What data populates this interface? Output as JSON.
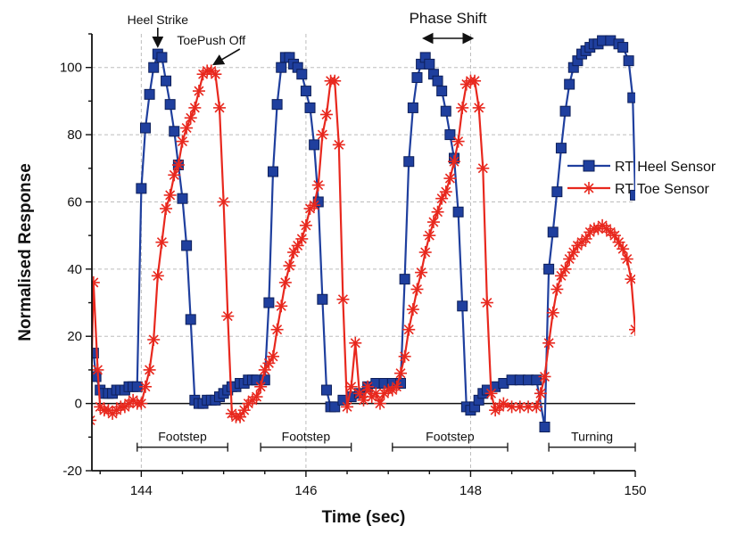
{
  "chart_data": {
    "type": "line",
    "xlabel": "Time (sec)",
    "ylabel": "Normalised Response",
    "xlim": [
      143.4,
      150
    ],
    "ylim": [
      -20,
      110
    ],
    "xticks": [
      144,
      146,
      148,
      150
    ],
    "yticks": [
      -20,
      0,
      20,
      40,
      60,
      80,
      100
    ],
    "grid": true,
    "legend_position": "right",
    "series": [
      {
        "name": "RT Heel Sensor",
        "color": "#1f3f9e",
        "marker": "square",
        "points": [
          [
            143.42,
            15
          ],
          [
            143.45,
            8
          ],
          [
            143.5,
            4
          ],
          [
            143.55,
            3
          ],
          [
            143.6,
            3
          ],
          [
            143.65,
            3
          ],
          [
            143.7,
            4
          ],
          [
            143.75,
            4
          ],
          [
            143.8,
            4
          ],
          [
            143.85,
            5
          ],
          [
            143.9,
            5
          ],
          [
            143.95,
            5
          ],
          [
            144.0,
            64
          ],
          [
            144.05,
            82
          ],
          [
            144.1,
            92
          ],
          [
            144.15,
            100
          ],
          [
            144.2,
            104
          ],
          [
            144.25,
            103
          ],
          [
            144.3,
            96
          ],
          [
            144.35,
            89
          ],
          [
            144.4,
            81
          ],
          [
            144.45,
            71
          ],
          [
            144.5,
            61
          ],
          [
            144.55,
            47
          ],
          [
            144.6,
            25
          ],
          [
            144.65,
            1
          ],
          [
            144.7,
            0
          ],
          [
            144.75,
            0
          ],
          [
            144.8,
            1
          ],
          [
            144.85,
            1
          ],
          [
            144.9,
            1
          ],
          [
            144.95,
            2
          ],
          [
            145.0,
            3
          ],
          [
            145.05,
            4
          ],
          [
            145.1,
            5
          ],
          [
            145.15,
            5
          ],
          [
            145.2,
            6
          ],
          [
            145.25,
            6
          ],
          [
            145.3,
            7
          ],
          [
            145.35,
            7
          ],
          [
            145.4,
            7
          ],
          [
            145.5,
            7
          ],
          [
            145.55,
            30
          ],
          [
            145.6,
            69
          ],
          [
            145.65,
            89
          ],
          [
            145.7,
            100
          ],
          [
            145.75,
            103
          ],
          [
            145.8,
            103
          ],
          [
            145.85,
            101
          ],
          [
            145.9,
            100
          ],
          [
            145.95,
            98
          ],
          [
            146.0,
            93
          ],
          [
            146.05,
            88
          ],
          [
            146.1,
            77
          ],
          [
            146.15,
            60
          ],
          [
            146.2,
            31
          ],
          [
            146.25,
            4
          ],
          [
            146.3,
            -1
          ],
          [
            146.35,
            -1
          ],
          [
            146.45,
            1
          ],
          [
            146.55,
            2
          ],
          [
            146.65,
            3
          ],
          [
            146.75,
            5
          ],
          [
            146.85,
            6
          ],
          [
            146.95,
            6
          ],
          [
            147.05,
            6
          ],
          [
            147.15,
            6
          ],
          [
            147.2,
            37
          ],
          [
            147.25,
            72
          ],
          [
            147.3,
            88
          ],
          [
            147.35,
            97
          ],
          [
            147.4,
            101
          ],
          [
            147.45,
            103
          ],
          [
            147.5,
            101
          ],
          [
            147.55,
            98
          ],
          [
            147.6,
            96
          ],
          [
            147.65,
            93
          ],
          [
            147.7,
            87
          ],
          [
            147.75,
            80
          ],
          [
            147.8,
            73
          ],
          [
            147.85,
            57
          ],
          [
            147.9,
            29
          ],
          [
            147.95,
            -1
          ],
          [
            148.0,
            -2
          ],
          [
            148.05,
            -1
          ],
          [
            148.1,
            1
          ],
          [
            148.15,
            3
          ],
          [
            148.2,
            4
          ],
          [
            148.3,
            5
          ],
          [
            148.4,
            6
          ],
          [
            148.5,
            7
          ],
          [
            148.6,
            7
          ],
          [
            148.7,
            7
          ],
          [
            148.8,
            7
          ],
          [
            148.9,
            -7
          ],
          [
            148.95,
            40
          ],
          [
            149.0,
            51
          ],
          [
            149.05,
            63
          ],
          [
            149.1,
            76
          ],
          [
            149.15,
            87
          ],
          [
            149.2,
            95
          ],
          [
            149.25,
            100
          ],
          [
            149.3,
            102
          ],
          [
            149.35,
            104
          ],
          [
            149.4,
            105
          ],
          [
            149.45,
            106
          ],
          [
            149.5,
            107
          ],
          [
            149.55,
            107
          ],
          [
            149.6,
            108
          ],
          [
            149.7,
            108
          ],
          [
            149.8,
            107
          ],
          [
            149.85,
            106
          ],
          [
            149.92,
            102
          ],
          [
            149.97,
            91
          ],
          [
            150.0,
            62
          ]
        ]
      },
      {
        "name": "RT Toe Sensor",
        "color": "#e8281e",
        "marker": "asterisk",
        "points": [
          [
            143.38,
            -5
          ],
          [
            143.42,
            36
          ],
          [
            143.47,
            10
          ],
          [
            143.5,
            -1
          ],
          [
            143.55,
            -2
          ],
          [
            143.6,
            -2
          ],
          [
            143.65,
            -3
          ],
          [
            143.7,
            -2
          ],
          [
            143.75,
            -1
          ],
          [
            143.8,
            -1
          ],
          [
            143.85,
            0
          ],
          [
            143.9,
            1
          ],
          [
            143.95,
            0
          ],
          [
            144.0,
            0
          ],
          [
            144.05,
            5
          ],
          [
            144.1,
            10
          ],
          [
            144.15,
            19
          ],
          [
            144.2,
            38
          ],
          [
            144.25,
            48
          ],
          [
            144.3,
            58
          ],
          [
            144.35,
            62
          ],
          [
            144.4,
            68
          ],
          [
            144.45,
            71
          ],
          [
            144.5,
            78
          ],
          [
            144.55,
            82
          ],
          [
            144.6,
            85
          ],
          [
            144.65,
            88
          ],
          [
            144.7,
            93
          ],
          [
            144.75,
            98
          ],
          [
            144.8,
            99
          ],
          [
            144.85,
            99
          ],
          [
            144.9,
            98
          ],
          [
            144.95,
            88
          ],
          [
            145.0,
            60
          ],
          [
            145.05,
            26
          ],
          [
            145.1,
            -3
          ],
          [
            145.15,
            -4
          ],
          [
            145.2,
            -4
          ],
          [
            145.25,
            -2
          ],
          [
            145.3,
            0
          ],
          [
            145.35,
            1
          ],
          [
            145.4,
            2
          ],
          [
            145.45,
            5
          ],
          [
            145.5,
            10
          ],
          [
            145.55,
            12
          ],
          [
            145.6,
            14
          ],
          [
            145.65,
            22
          ],
          [
            145.7,
            29
          ],
          [
            145.75,
            36
          ],
          [
            145.8,
            41
          ],
          [
            145.85,
            45
          ],
          [
            145.9,
            47
          ],
          [
            145.95,
            49
          ],
          [
            146.0,
            53
          ],
          [
            146.05,
            58
          ],
          [
            146.1,
            59
          ],
          [
            146.15,
            65
          ],
          [
            146.2,
            80
          ],
          [
            146.25,
            86
          ],
          [
            146.3,
            96
          ],
          [
            146.35,
            96
          ],
          [
            146.4,
            77
          ],
          [
            146.45,
            31
          ],
          [
            146.5,
            -1
          ],
          [
            146.55,
            5
          ],
          [
            146.6,
            18
          ],
          [
            146.65,
            3
          ],
          [
            146.7,
            1
          ],
          [
            146.75,
            5
          ],
          [
            146.8,
            2
          ],
          [
            146.85,
            3
          ],
          [
            146.9,
            0
          ],
          [
            146.95,
            3
          ],
          [
            147.0,
            4
          ],
          [
            147.05,
            4
          ],
          [
            147.1,
            5
          ],
          [
            147.15,
            9
          ],
          [
            147.2,
            14
          ],
          [
            147.25,
            22
          ],
          [
            147.3,
            28
          ],
          [
            147.35,
            34
          ],
          [
            147.4,
            39
          ],
          [
            147.45,
            45
          ],
          [
            147.5,
            50
          ],
          [
            147.55,
            54
          ],
          [
            147.6,
            57
          ],
          [
            147.65,
            61
          ],
          [
            147.7,
            63
          ],
          [
            147.75,
            67
          ],
          [
            147.8,
            72
          ],
          [
            147.85,
            78
          ],
          [
            147.9,
            88
          ],
          [
            147.95,
            95
          ],
          [
            148.0,
            96
          ],
          [
            148.05,
            96
          ],
          [
            148.1,
            88
          ],
          [
            148.15,
            70
          ],
          [
            148.2,
            30
          ],
          [
            148.25,
            3
          ],
          [
            148.3,
            -2
          ],
          [
            148.35,
            -1
          ],
          [
            148.4,
            0
          ],
          [
            148.5,
            -1
          ],
          [
            148.6,
            -1
          ],
          [
            148.7,
            -1
          ],
          [
            148.8,
            -1
          ],
          [
            148.85,
            3
          ],
          [
            148.9,
            8
          ],
          [
            148.95,
            18
          ],
          [
            149.0,
            27
          ],
          [
            149.05,
            34
          ],
          [
            149.1,
            38
          ],
          [
            149.15,
            40
          ],
          [
            149.2,
            43
          ],
          [
            149.25,
            45
          ],
          [
            149.3,
            47
          ],
          [
            149.35,
            48
          ],
          [
            149.4,
            49
          ],
          [
            149.45,
            51
          ],
          [
            149.5,
            52
          ],
          [
            149.55,
            52
          ],
          [
            149.6,
            53
          ],
          [
            149.65,
            52
          ],
          [
            149.7,
            51
          ],
          [
            149.75,
            50
          ],
          [
            149.8,
            48
          ],
          [
            149.85,
            46
          ],
          [
            149.9,
            43
          ],
          [
            149.95,
            37
          ],
          [
            150.0,
            22
          ]
        ]
      }
    ],
    "annotations": [
      {
        "text": "Heel Strike",
        "at": [
          144.2,
          104
        ]
      },
      {
        "text": "ToePush Off",
        "at": [
          144.85,
          99
        ]
      },
      {
        "text": "Phase Shift",
        "from": [
          147.4,
          109
        ],
        "to": [
          148.05,
          109
        ]
      }
    ],
    "spans": [
      {
        "label": "Footstep",
        "x": [
          143.95,
          145.05
        ],
        "y": -13
      },
      {
        "label": "Footstep",
        "x": [
          145.45,
          146.55
        ],
        "y": -13
      },
      {
        "label": "Footstep",
        "x": [
          147.05,
          148.45
        ],
        "y": -13
      },
      {
        "label": "Turning",
        "x": [
          148.95,
          150.0
        ],
        "y": -13
      }
    ]
  }
}
